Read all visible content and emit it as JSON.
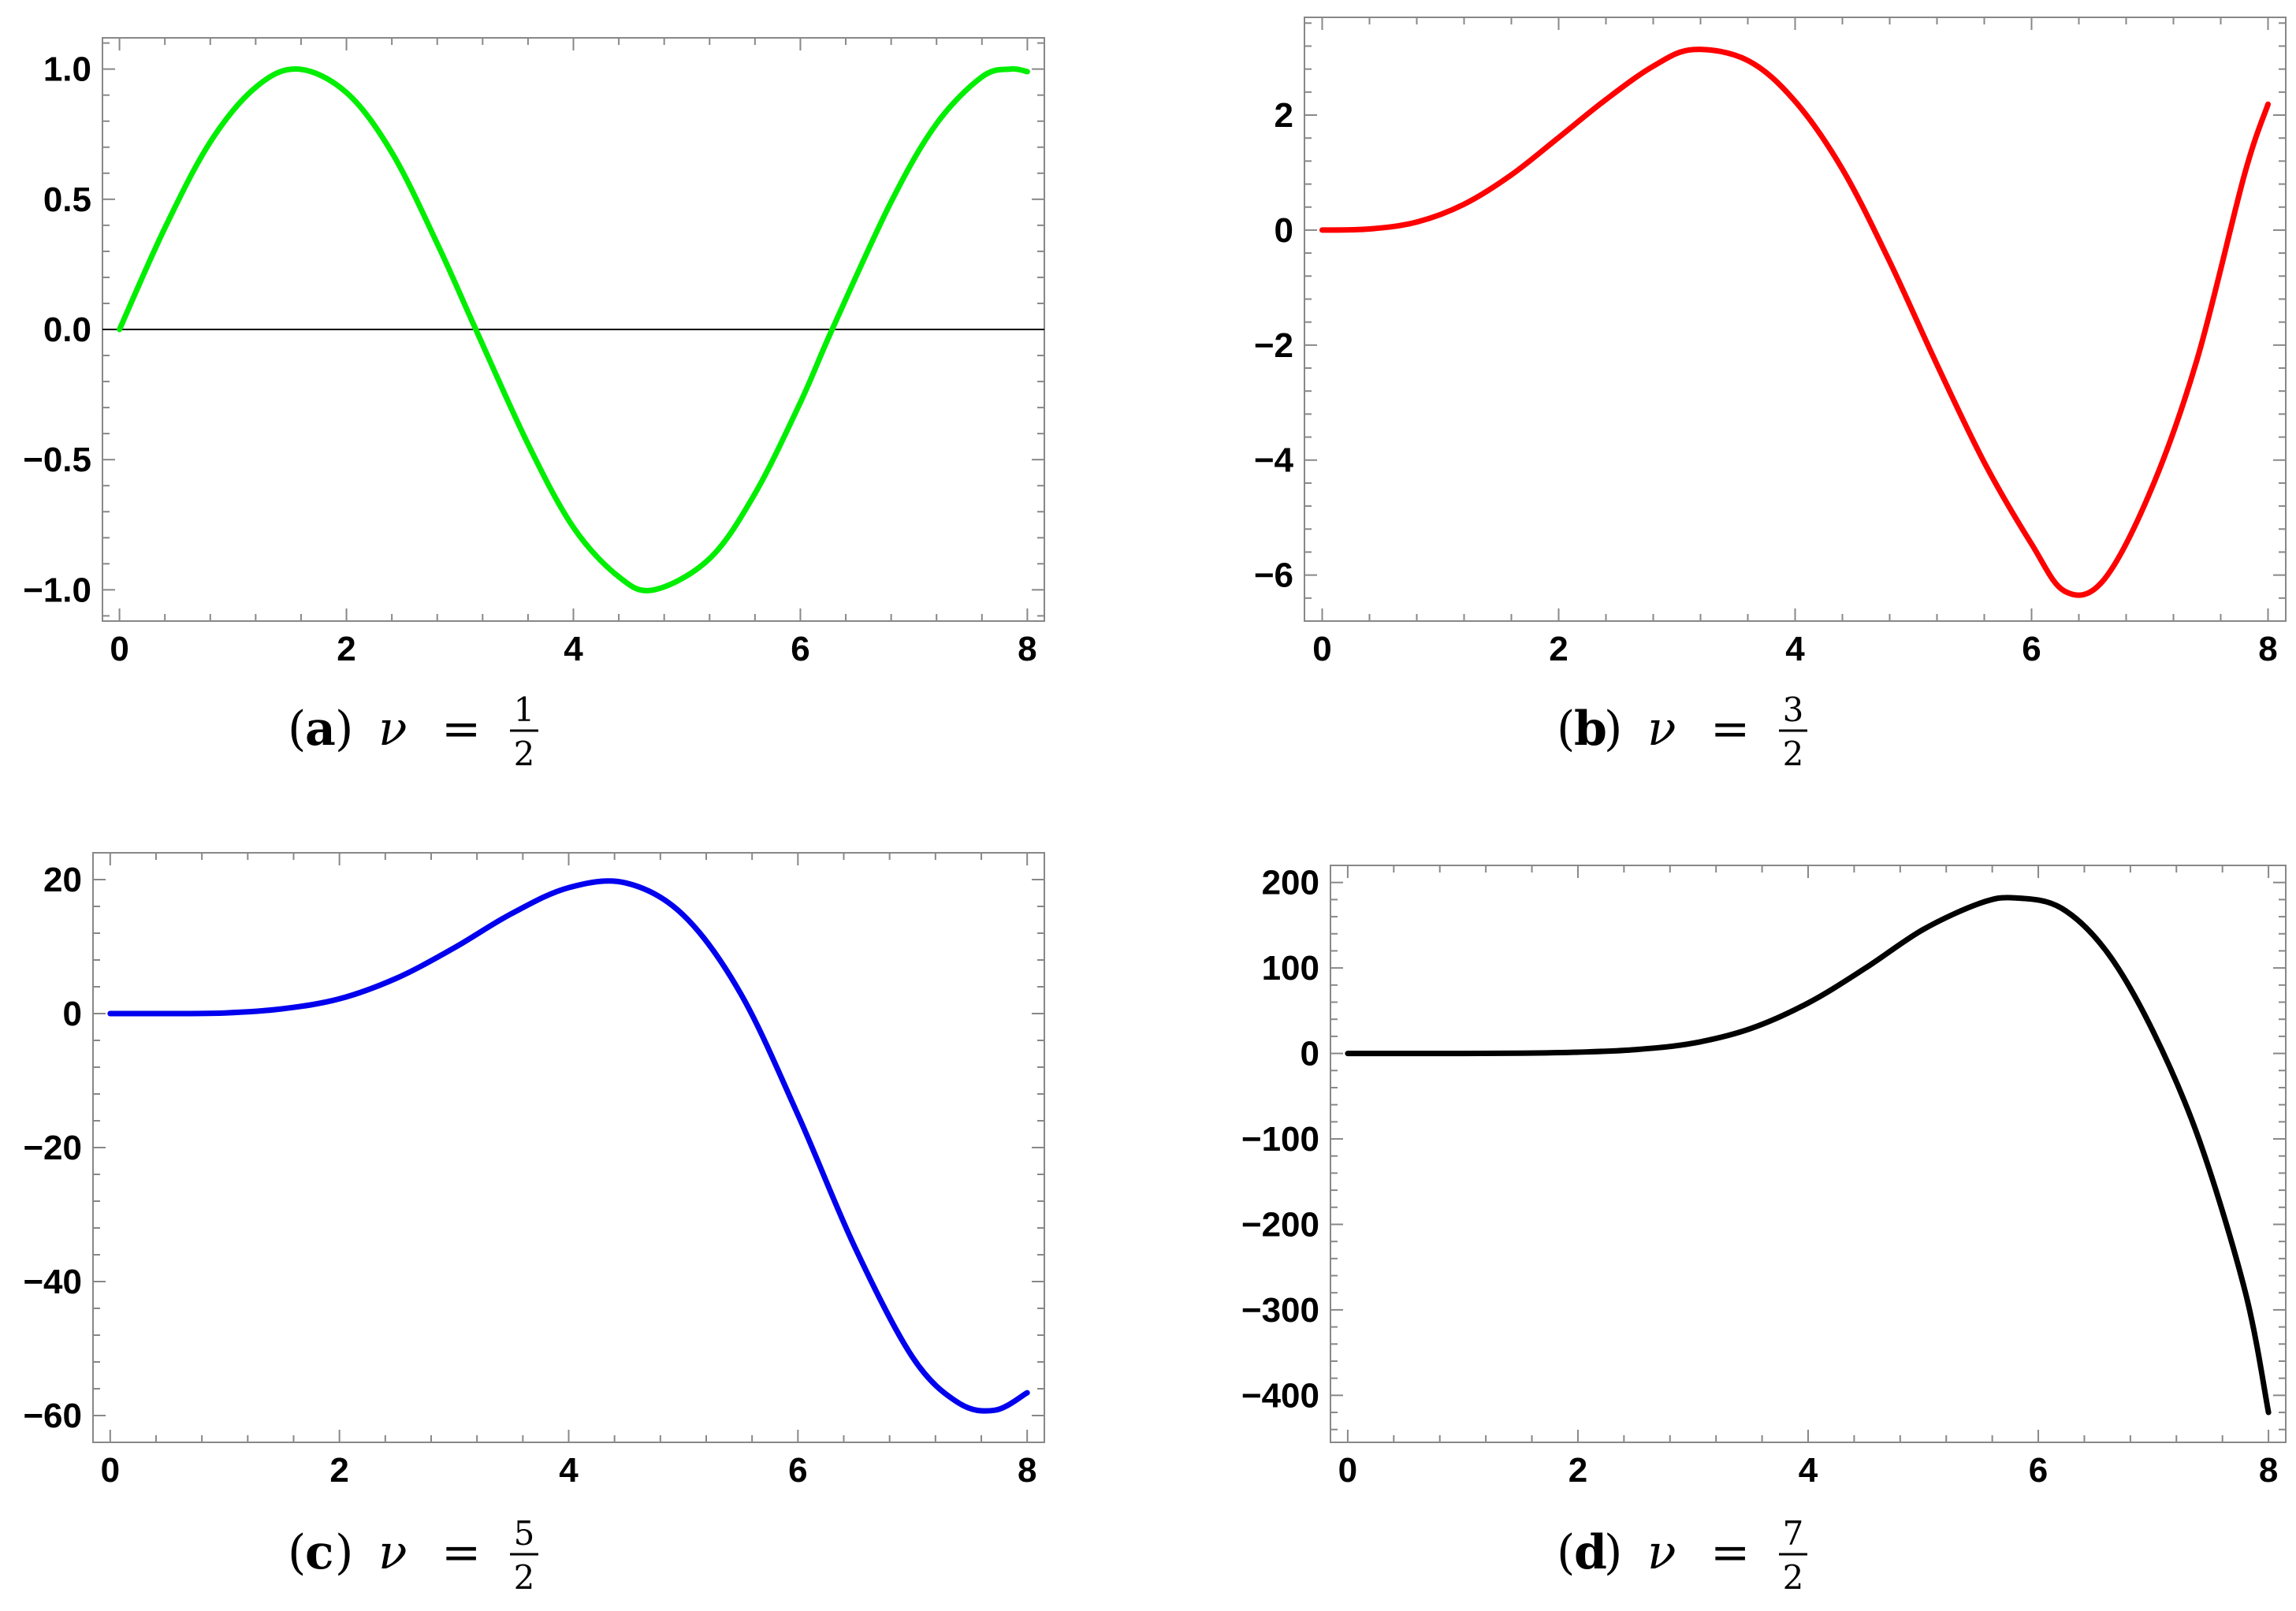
{
  "chart_data": [
    {
      "type": "line",
      "panel": "a",
      "caption": {
        "label": "a",
        "symbol": "ν",
        "equals": "=",
        "numerator": "1",
        "denominator": "2"
      },
      "color": "#00ee00",
      "xlim": [
        -0.15,
        8.15
      ],
      "ylim": [
        -1.12,
        1.12
      ],
      "xticks": [
        0,
        2,
        4,
        6,
        8
      ],
      "yticks": [
        -1.0,
        -0.5,
        0.0,
        0.5,
        1.0
      ],
      "xtick_labels": [
        "0",
        "2",
        "4",
        "6",
        "8"
      ],
      "ytick_labels": [
        "-1.0",
        "-0.5",
        "0.0",
        "0.5",
        "1.0"
      ],
      "zero_line": true,
      "series": [
        {
          "x": [
            0,
            0.4,
            0.8,
            1.2,
            1.57,
            2.0,
            2.4,
            2.8,
            3.14,
            3.6,
            4.0,
            4.4,
            4.71,
            5.2,
            5.6,
            6.0,
            6.28,
            6.8,
            7.2,
            7.6,
            7.85,
            8.0
          ],
          "y": [
            0,
            0.39,
            0.72,
            0.93,
            1.0,
            0.91,
            0.68,
            0.33,
            0.0,
            -0.44,
            -0.76,
            -0.95,
            -1.0,
            -0.88,
            -0.63,
            -0.28,
            0.0,
            0.49,
            0.79,
            0.97,
            1.0,
            0.99
          ]
        }
      ]
    },
    {
      "type": "line",
      "panel": "b",
      "caption": {
        "label": "b",
        "symbol": "ν",
        "equals": "=",
        "numerator": "3",
        "denominator": "2"
      },
      "color": "#ff0000",
      "xlim": [
        -0.15,
        8.15
      ],
      "ylim": [
        -6.8,
        3.7
      ],
      "xticks": [
        0,
        2,
        4,
        6,
        8
      ],
      "yticks": [
        -6,
        -4,
        -2,
        0,
        2
      ],
      "xtick_labels": [
        "0",
        "2",
        "4",
        "6",
        "8"
      ],
      "ytick_labels": [
        "-6",
        "-4",
        "-2",
        "0",
        "2"
      ],
      "zero_line": false,
      "series": [
        {
          "x": [
            0,
            0.4,
            0.8,
            1.2,
            1.6,
            2.0,
            2.4,
            2.8,
            3.14,
            3.6,
            4.0,
            4.4,
            4.8,
            5.2,
            5.6,
            6.0,
            6.28,
            6.6,
            7.0,
            7.4,
            7.8,
            8.0
          ],
          "y": [
            0,
            0.02,
            0.14,
            0.45,
            0.96,
            1.61,
            2.27,
            2.85,
            3.14,
            2.95,
            2.24,
            1.06,
            -0.55,
            -2.34,
            -4.04,
            -5.46,
            -6.28,
            -6.11,
            -4.57,
            -2.25,
            0.96,
            2.19
          ]
        }
      ]
    },
    {
      "type": "line",
      "panel": "c",
      "caption": {
        "label": "c",
        "symbol": "ν",
        "equals": "=",
        "numerator": "5",
        "denominator": "2"
      },
      "color": "#0000ee",
      "xlim": [
        -0.15,
        8.15
      ],
      "ylim": [
        -64,
        24
      ],
      "xticks": [
        0,
        2,
        4,
        6,
        8
      ],
      "yticks": [
        -60,
        -40,
        -20,
        0,
        20
      ],
      "xtick_labels": [
        "0",
        "2",
        "4",
        "6",
        "8"
      ],
      "ytick_labels": [
        "-60",
        "-40",
        "-20",
        "0",
        "20"
      ],
      "zero_line": false,
      "series": [
        {
          "x": [
            0,
            0.5,
            1.0,
            1.5,
            2.0,
            2.5,
            3.0,
            3.5,
            4.0,
            4.5,
            5.0,
            5.5,
            6.0,
            6.5,
            7.0,
            7.4,
            7.72,
            8.0
          ],
          "y": [
            0,
            0.0,
            0.1,
            0.7,
            2.2,
            5.3,
            9.8,
            14.9,
            18.8,
            19.5,
            14.7,
            3.0,
            -15.1,
            -35.0,
            -51.3,
            -58.1,
            -59.2,
            -56.6
          ]
        }
      ]
    },
    {
      "type": "line",
      "panel": "d",
      "caption": {
        "label": "d",
        "symbol": "ν",
        "equals": "=",
        "numerator": "7",
        "denominator": "2"
      },
      "color": "#000000",
      "xlim": [
        -0.15,
        8.15
      ],
      "ylim": [
        -455,
        220
      ],
      "xticks": [
        0,
        2,
        4,
        6,
        8
      ],
      "yticks": [
        -400,
        -300,
        -200,
        -100,
        0,
        100,
        200
      ],
      "xtick_labels": [
        "0",
        "2",
        "4",
        "6",
        "8"
      ],
      "ytick_labels": [
        "-400",
        "-300",
        "-200",
        "-100",
        "0",
        "100",
        "200"
      ],
      "zero_line": false,
      "series": [
        {
          "x": [
            0,
            0.5,
            1.0,
            1.5,
            2.0,
            2.5,
            3.0,
            3.5,
            4.0,
            4.5,
            5.0,
            5.5,
            5.8,
            6.2,
            6.6,
            7.0,
            7.4,
            7.8,
            8.0
          ],
          "y": [
            0,
            0,
            0,
            0.3,
            1.5,
            4.5,
            12,
            29,
            59,
            100,
            145,
            176,
            182,
            170,
            118,
            25,
            -102,
            -280,
            -420
          ]
        }
      ]
    }
  ]
}
